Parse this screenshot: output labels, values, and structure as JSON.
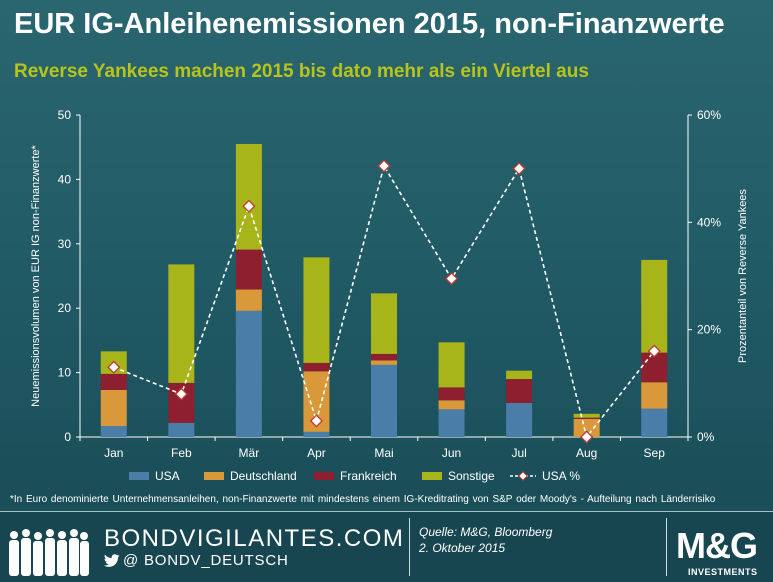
{
  "header": {
    "title": "EUR IG-Anleihenemissionen 2015, non-Finanzwerte",
    "subtitle": "Reverse Yankees machen 2015 bis dato mehr als ein Viertel aus"
  },
  "chart_data": {
    "type": "bar",
    "stacked": true,
    "categories": [
      "Jan",
      "Feb",
      "Mär",
      "Apr",
      "Mai",
      "Jun",
      "Jul",
      "Aug",
      "Sep"
    ],
    "series": [
      {
        "name": "USA",
        "color": "#4a7ea8",
        "values": [
          1.7,
          2.2,
          19.6,
          0.8,
          11.2,
          4.3,
          5.3,
          0.0,
          4.4
        ]
      },
      {
        "name": "Deutschland",
        "color": "#d9993a",
        "values": [
          5.6,
          0.0,
          3.3,
          9.4,
          0.7,
          1.4,
          0.0,
          2.8,
          4.1
        ]
      },
      {
        "name": "Frankreich",
        "color": "#8d1f2f",
        "values": [
          2.5,
          6.2,
          6.2,
          1.3,
          1.0,
          2.0,
          3.7,
          0.2,
          4.6
        ]
      },
      {
        "name": "Sonstige",
        "color": "#a7b51a",
        "values": [
          3.5,
          18.4,
          16.4,
          16.4,
          9.4,
          7.0,
          1.3,
          0.6,
          14.4
        ]
      }
    ],
    "line_series": {
      "name": "USA %",
      "axis": "right",
      "values": [
        13.0,
        8.0,
        43.0,
        3.0,
        50.5,
        29.5,
        50.0,
        0.0,
        16.0
      ]
    },
    "ylim": [
      0,
      50
    ],
    "yticks": [
      "0",
      "10",
      "20",
      "30",
      "40",
      "50"
    ],
    "y2lim": [
      0,
      60
    ],
    "y2ticks": [
      "0%",
      "20%",
      "40%",
      "60%"
    ],
    "ylabel": "Neuemissionsvolumen von EUR IG non-Finanzwerte*",
    "y2label": "Prozentanteil von Reverse Yankees",
    "legend_position": "bottom"
  },
  "footnote": "*In Euro denominierte Unternehmensanleihen, non-Finanzwerte mit mindestens einem IG-Kreditrating von S&P oder Moody's - Aufteilung nach Länderrisiko",
  "footer": {
    "brand": "BONDVIGILANTES.COM",
    "handle": "@ BONDV_DEUTSCH",
    "source_line1": "Quelle: M&G, Bloomberg",
    "source_line2": "2. Oktober 2015",
    "logo": "M&G",
    "logo_sub": "INVESTMENTS"
  },
  "colors": {
    "background": "#1f5863",
    "subtitle": "#b7c41a",
    "line": "#ffffff"
  }
}
